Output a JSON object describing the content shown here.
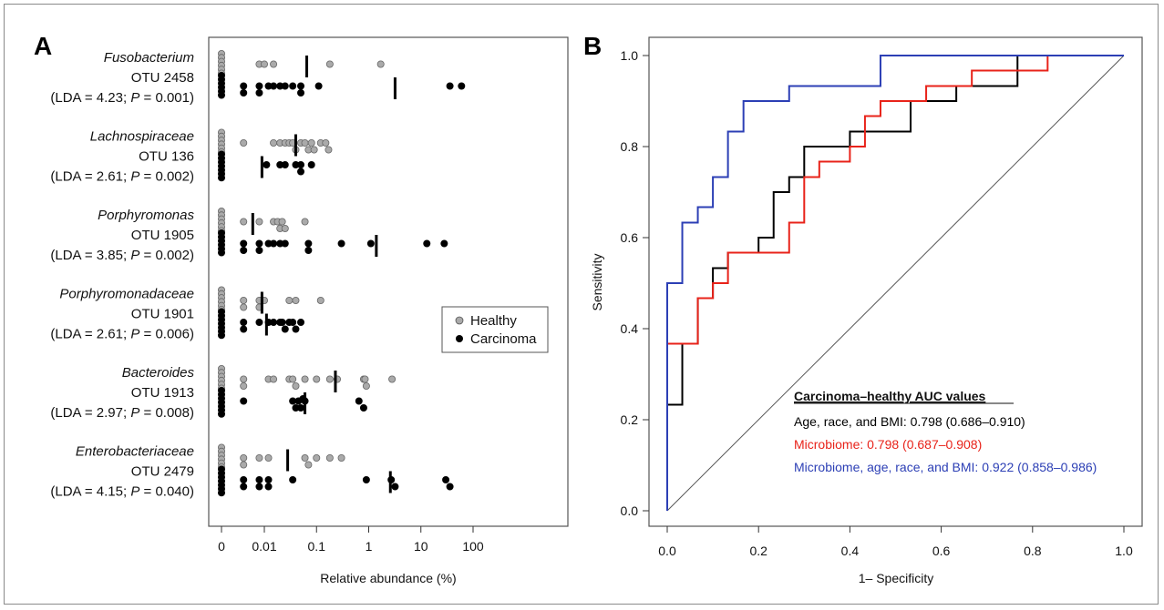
{
  "chart_data": [
    {
      "panel": "A",
      "type": "scatter",
      "xlabel": "Relative abundance (%)",
      "x_scale": "log (0 shown at left)",
      "x_ticks": [
        "0",
        "0.01",
        "0.1",
        "1",
        "10",
        "100"
      ],
      "x_tick_values": [
        0,
        0.01,
        0.1,
        1,
        10,
        100
      ],
      "legend": {
        "position": "right-middle",
        "entries": [
          "Healthy",
          "Carcinoma"
        ]
      },
      "series_colors": {
        "Healthy": "#aaaaaa",
        "Carcinoma": "#000000"
      },
      "groups": [
        {
          "name": "Fusobacterium",
          "otu": "OTU 2458",
          "lda": "4.23",
          "p": "0.001",
          "healthy_points": [
            0,
            0,
            0,
            0,
            0,
            0,
            0.008,
            0.015,
            0.01,
            0.18,
            1.7
          ],
          "carcinoma_points": [
            0,
            0,
            0,
            0,
            0,
            0,
            0.004,
            0.004,
            0.008,
            0.008,
            0.012,
            0.015,
            0.02,
            0.025,
            0.035,
            0.05,
            0.05,
            0.11,
            36,
            60
          ],
          "healthy_median": 0.065,
          "carcinoma_median": 3.2
        },
        {
          "name": "Lachnospiraceae",
          "otu": "OTU 136",
          "lda": "2.61",
          "p": "0.002",
          "healthy_points": [
            0,
            0,
            0,
            0,
            0,
            0,
            0.004,
            0.015,
            0.02,
            0.025,
            0.03,
            0.035,
            0.04,
            0.05,
            0.06,
            0.07,
            0.08,
            0.09,
            0.12,
            0.15,
            0.17
          ],
          "carcinoma_points": [
            0,
            0,
            0,
            0,
            0,
            0,
            0,
            0.011,
            0.02,
            0.025,
            0.04,
            0.05,
            0.05,
            0.08
          ],
          "healthy_median": 0.04,
          "carcinoma_median": 0.009
        },
        {
          "name": "Porphyromonas",
          "otu": "OTU 1905",
          "lda": "3.85",
          "p": "0.002",
          "healthy_points": [
            0,
            0,
            0,
            0,
            0,
            0,
            0.004,
            0.008,
            0.015,
            0.018,
            0.02,
            0.022,
            0.025,
            0.06
          ],
          "carcinoma_points": [
            0,
            0,
            0,
            0,
            0,
            0,
            0.004,
            0.004,
            0.008,
            0.008,
            0.012,
            0.015,
            0.02,
            0.025,
            0.07,
            0.07,
            0.3,
            1.1,
            13,
            28
          ],
          "healthy_median": 0.006,
          "carcinoma_median": 1.4
        },
        {
          "name": "Porphyromonadaceae",
          "otu": "OTU 1901",
          "lda": "2.61",
          "p": "0.006",
          "healthy_points": [
            0,
            0,
            0,
            0,
            0,
            0,
            0.004,
            0.004,
            0.008,
            0.008,
            0.01,
            0.03,
            0.04,
            0.12
          ],
          "carcinoma_points": [
            0,
            0,
            0,
            0,
            0,
            0,
            0,
            0.004,
            0.004,
            0.008,
            0.012,
            0.015,
            0.02,
            0.022,
            0.025,
            0.03,
            0.035,
            0.04,
            0.05
          ],
          "healthy_median": 0.009,
          "carcinoma_median": 0.011
        },
        {
          "name": "Bacteroides",
          "otu": "OTU 1913",
          "lda": "2.97",
          "p": "0.008",
          "healthy_points": [
            0,
            0,
            0,
            0,
            0,
            0,
            0.004,
            0.004,
            0.012,
            0.015,
            0.03,
            0.035,
            0.04,
            0.06,
            0.1,
            0.18,
            0.25,
            0.8,
            0.85,
            0.9,
            2.8
          ],
          "carcinoma_points": [
            0,
            0,
            0,
            0,
            0,
            0,
            0,
            0.004,
            0.035,
            0.04,
            0.045,
            0.05,
            0.055,
            0.06,
            0.65,
            0.8
          ],
          "healthy_median": 0.23,
          "carcinoma_median": 0.06
        },
        {
          "name": "Enterobacteriaceae",
          "otu": "OTU 2479",
          "lda": "4.15",
          "p": "0.040",
          "healthy_points": [
            0,
            0,
            0,
            0,
            0,
            0,
            0.004,
            0.004,
            0.008,
            0.012,
            0.06,
            0.07,
            0.1,
            0.18,
            0.3
          ],
          "carcinoma_points": [
            0,
            0,
            0,
            0,
            0,
            0,
            0,
            0.004,
            0.004,
            0.008,
            0.008,
            0.012,
            0.012,
            0.035,
            0.9,
            2.7,
            3.2,
            30,
            36
          ],
          "healthy_median": 0.028,
          "carcinoma_median": 2.6
        }
      ]
    },
    {
      "panel": "B",
      "type": "line",
      "xlabel": "1– Specificity",
      "ylabel": "Sensitivity",
      "xlim": [
        0,
        1
      ],
      "ylim": [
        0,
        1
      ],
      "x_ticks": [
        0.0,
        0.2,
        0.4,
        0.6,
        0.8,
        1.0
      ],
      "y_ticks": [
        0.0,
        0.2,
        0.4,
        0.6,
        0.8,
        1.0
      ],
      "x_tick_labels": [
        "0.0",
        "0.2",
        "0.4",
        "0.6",
        "0.8",
        "1.0"
      ],
      "y_tick_labels": [
        "0.0",
        "0.2",
        "0.4",
        "0.6",
        "0.8",
        "1.0"
      ],
      "diagonal": true,
      "auc_title": "Carcinoma–healthy AUC values",
      "series": [
        {
          "label": "Age, race, and BMI: 0.798 (0.686–0.910)",
          "color": "#000000",
          "points": [
            [
              0,
              0
            ],
            [
              0,
              0.233
            ],
            [
              0.033,
              0.233
            ],
            [
              0.033,
              0.367
            ],
            [
              0.067,
              0.367
            ],
            [
              0.067,
              0.467
            ],
            [
              0.1,
              0.467
            ],
            [
              0.1,
              0.533
            ],
            [
              0.133,
              0.533
            ],
            [
              0.133,
              0.567
            ],
            [
              0.2,
              0.567
            ],
            [
              0.2,
              0.6
            ],
            [
              0.233,
              0.6
            ],
            [
              0.233,
              0.7
            ],
            [
              0.267,
              0.7
            ],
            [
              0.267,
              0.733
            ],
            [
              0.3,
              0.733
            ],
            [
              0.3,
              0.8
            ],
            [
              0.4,
              0.8
            ],
            [
              0.4,
              0.833
            ],
            [
              0.533,
              0.833
            ],
            [
              0.533,
              0.9
            ],
            [
              0.633,
              0.9
            ],
            [
              0.633,
              0.933
            ],
            [
              0.767,
              0.933
            ],
            [
              0.767,
              1.0
            ],
            [
              1.0,
              1.0
            ]
          ]
        },
        {
          "label": "Microbiome: 0.798 (0.687–0.908)",
          "color": "#e8231a",
          "points": [
            [
              0,
              0
            ],
            [
              0,
              0.367
            ],
            [
              0.067,
              0.367
            ],
            [
              0.067,
              0.467
            ],
            [
              0.1,
              0.467
            ],
            [
              0.1,
              0.5
            ],
            [
              0.133,
              0.5
            ],
            [
              0.133,
              0.567
            ],
            [
              0.267,
              0.567
            ],
            [
              0.267,
              0.633
            ],
            [
              0.3,
              0.633
            ],
            [
              0.3,
              0.733
            ],
            [
              0.333,
              0.733
            ],
            [
              0.333,
              0.767
            ],
            [
              0.4,
              0.767
            ],
            [
              0.4,
              0.8
            ],
            [
              0.433,
              0.8
            ],
            [
              0.433,
              0.867
            ],
            [
              0.467,
              0.867
            ],
            [
              0.467,
              0.9
            ],
            [
              0.567,
              0.9
            ],
            [
              0.567,
              0.933
            ],
            [
              0.667,
              0.933
            ],
            [
              0.667,
              0.967
            ],
            [
              0.833,
              0.967
            ],
            [
              0.833,
              1.0
            ],
            [
              1.0,
              1.0
            ]
          ]
        },
        {
          "label": "Microbiome, age, race, and BMI: 0.922 (0.858–0.986)",
          "color": "#2c3fb5",
          "points": [
            [
              0,
              0
            ],
            [
              0,
              0.5
            ],
            [
              0.033,
              0.5
            ],
            [
              0.033,
              0.633
            ],
            [
              0.067,
              0.633
            ],
            [
              0.067,
              0.667
            ],
            [
              0.1,
              0.667
            ],
            [
              0.1,
              0.733
            ],
            [
              0.133,
              0.733
            ],
            [
              0.133,
              0.833
            ],
            [
              0.167,
              0.833
            ],
            [
              0.167,
              0.9
            ],
            [
              0.267,
              0.9
            ],
            [
              0.267,
              0.933
            ],
            [
              0.467,
              0.933
            ],
            [
              0.467,
              1.0
            ],
            [
              1.0,
              1.0
            ]
          ]
        }
      ]
    }
  ]
}
